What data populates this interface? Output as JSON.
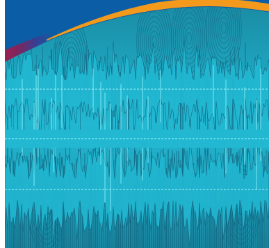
{
  "artwork": {
    "kind": "audio waveform graphic",
    "channels": 2,
    "colors": {
      "page_background": "#ffffff",
      "sky_blue": "#0b5ea6",
      "wave_dark": "#13647f",
      "wave_mid": "#1a8aa3",
      "wave_light": "#22b8d2",
      "wave_highlight": "#6fe3f0",
      "guide_line": "#9ff2fb",
      "orange_band": "#f39a1c",
      "magenta_band": "#9c1f4f",
      "purple_band": "#3a3d92"
    },
    "icons": [
      "waveform-graphic",
      "orange-arc-band",
      "magenta-arc-band"
    ]
  }
}
